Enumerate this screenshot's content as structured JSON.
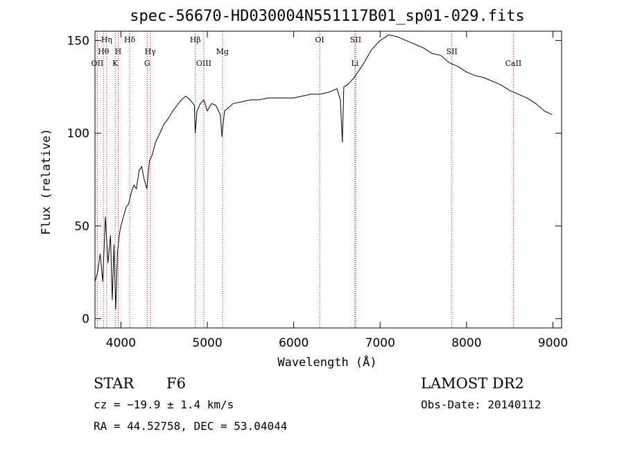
{
  "chart_data": {
    "type": "line",
    "title": "spec-56670-HD030004N551117B01_sp01-029.fits",
    "xlabel": "Wavelength (Å)",
    "ylabel": "Flux (relative)",
    "xlim": [
      3700,
      9100
    ],
    "ylim": [
      -5,
      155
    ],
    "xticks": [
      4000,
      5000,
      6000,
      7000,
      8000,
      9000
    ],
    "yticks": [
      0,
      50,
      100,
      150
    ],
    "spectrum": {
      "name": "flux",
      "x": [
        3700,
        3730,
        3760,
        3790,
        3820,
        3850,
        3880,
        3900,
        3920,
        3940,
        3960,
        3980,
        4000,
        4030,
        4060,
        4090,
        4120,
        4150,
        4180,
        4210,
        4240,
        4270,
        4300,
        4330,
        4360,
        4400,
        4450,
        4500,
        4550,
        4600,
        4650,
        4700,
        4750,
        4800,
        4850,
        4860,
        4880,
        4920,
        4960,
        5000,
        5050,
        5100,
        5150,
        5170,
        5180,
        5200,
        5250,
        5300,
        5400,
        5500,
        5600,
        5700,
        5800,
        5900,
        6000,
        6100,
        6200,
        6300,
        6400,
        6500,
        6540,
        6563,
        6580,
        6620,
        6700,
        6800,
        6900,
        7000,
        7100,
        7200,
        7300,
        7400,
        7500,
        7600,
        7700,
        7800,
        7900,
        8000,
        8100,
        8200,
        8300,
        8400,
        8500,
        8600,
        8700,
        8800,
        8900,
        8990
      ],
      "y": [
        20,
        25,
        35,
        20,
        55,
        30,
        45,
        10,
        40,
        5,
        35,
        45,
        50,
        55,
        60,
        62,
        68,
        72,
        70,
        80,
        82,
        75,
        70,
        85,
        88,
        95,
        100,
        105,
        108,
        112,
        115,
        118,
        120,
        118,
        115,
        100,
        112,
        116,
        118,
        112,
        116,
        115,
        110,
        98,
        104,
        112,
        114,
        116,
        117,
        118,
        118,
        119,
        119,
        119,
        119,
        120,
        121,
        121,
        122,
        124,
        118,
        95,
        125,
        126,
        130,
        137,
        145,
        150,
        153,
        152,
        150,
        148,
        146,
        143,
        142,
        138,
        136,
        133,
        131,
        130,
        128,
        126,
        123,
        121,
        119,
        116,
        112,
        110
      ]
    },
    "line_markers": [
      {
        "label": "Hη",
        "x": 3835,
        "row": 0
      },
      {
        "label": "Hθ",
        "x": 3798,
        "row": 1
      },
      {
        "label": "OII",
        "x": 3727,
        "row": 2
      },
      {
        "label": "H",
        "x": 3968,
        "row": 1
      },
      {
        "label": "K",
        "x": 3934,
        "row": 2
      },
      {
        "label": "Hδ",
        "x": 4102,
        "row": 0
      },
      {
        "label": "Hγ",
        "x": 4340,
        "row": 1
      },
      {
        "label": "G",
        "x": 4304,
        "row": 2
      },
      {
        "label": "Hβ",
        "x": 4861,
        "row": 0
      },
      {
        "label": "OIII",
        "x": 4959,
        "row": 2
      },
      {
        "label": "Mg",
        "x": 5175,
        "row": 1
      },
      {
        "label": "OI",
        "x": 6300,
        "row": 0
      },
      {
        "label": "SII",
        "x": 6717,
        "row": 0
      },
      {
        "label": "Li",
        "x": 6708,
        "row": 2
      },
      {
        "label": "SII",
        "x": 7830,
        "row": 1
      },
      {
        "label": "CaII",
        "x": 8542,
        "row": 2
      }
    ],
    "legend": "none",
    "grid": false
  },
  "info": {
    "object_type": "STAR",
    "subclass": "F6",
    "survey": "LAMOST DR2",
    "redshift": "cz = −19.9 ± 1.4 km/s",
    "obs_date": "Obs-Date: 20140112",
    "coords": "RA =  44.52758, DEC =  53.04044"
  }
}
